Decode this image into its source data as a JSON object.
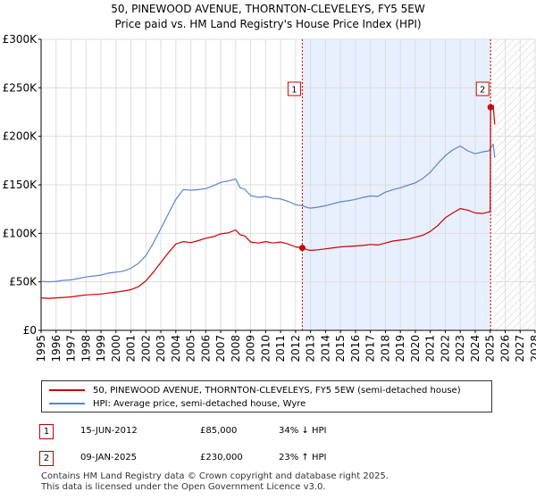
{
  "title_line1": "50, PINEWOOD AVENUE, THORNTON-CLEVELEYS, FY5 5EW",
  "title_line2": "Price paid vs. HM Land Registry's House Price Index (HPI)",
  "colors": {
    "property": "#cc0000",
    "hpi": "#5a87c8",
    "shade": "#e8efff",
    "marker": "#cc0000"
  },
  "chart_data": {
    "type": "line",
    "xlim": [
      1995,
      2028
    ],
    "ylim": [
      0,
      300000
    ],
    "y_ticks": [
      0,
      50000,
      100000,
      150000,
      200000,
      250000,
      300000
    ],
    "y_tick_labels": [
      "£0",
      "£50K",
      "£100K",
      "£150K",
      "£200K",
      "£250K",
      "£300K"
    ],
    "x_ticks": [
      1995,
      1996,
      1997,
      1998,
      1999,
      2000,
      2001,
      2002,
      2003,
      2004,
      2005,
      2006,
      2007,
      2008,
      2009,
      2010,
      2011,
      2012,
      2013,
      2014,
      2015,
      2016,
      2017,
      2018,
      2019,
      2020,
      2021,
      2022,
      2023,
      2024,
      2025,
      2026,
      2027,
      2028
    ],
    "shaded_period": [
      2012.45,
      2025.03
    ],
    "hatched_future_from": 2025.3,
    "series": [
      {
        "name": "50, PINEWOOD AVENUE, THORNTON-CLEVELEYS, FY5 5EW (semi-detached house)",
        "color": "#cc0000",
        "x": [
          1995.0,
          1995.5,
          1996,
          1996.5,
          1997,
          1997.5,
          1998,
          1998.5,
          1999,
          1999.5,
          2000,
          2000.5,
          2001,
          2001.5,
          2002,
          2002.5,
          2003,
          2003.5,
          2004,
          2004.5,
          2005,
          2005.5,
          2006,
          2006.5,
          2007,
          2007.5,
          2008,
          2008.3,
          2008.6,
          2009,
          2009.5,
          2010,
          2010.5,
          2011,
          2011.5,
          2012,
          2012.45,
          2012.8,
          2013,
          2013.5,
          2014,
          2014.5,
          2015,
          2015.5,
          2016,
          2016.5,
          2017,
          2017.5,
          2018,
          2018.5,
          2019,
          2019.5,
          2020,
          2020.5,
          2021,
          2021.5,
          2022,
          2022.5,
          2023,
          2023.5,
          2024,
          2024.5,
          2024.9,
          2025.0,
          2025.03,
          2025.2,
          2025.3
        ],
        "y": [
          33500,
          33000,
          33500,
          34000,
          34500,
          35500,
          36500,
          37000,
          37500,
          38500,
          39500,
          40500,
          42000,
          45000,
          51000,
          60000,
          70000,
          80000,
          89000,
          91500,
          90500,
          92500,
          95000,
          96500,
          99500,
          100500,
          103500,
          98500,
          97500,
          91000,
          90000,
          91500,
          90000,
          91000,
          89000,
          86000,
          85000,
          83000,
          82500,
          83000,
          84000,
          85000,
          86000,
          86500,
          87000,
          87500,
          88500,
          88000,
          90000,
          92000,
          93000,
          94000,
          96000,
          98000,
          102000,
          108000,
          116000,
          121000,
          125500,
          124000,
          121000,
          120500,
          122000,
          122000,
          230000,
          232000,
          212000
        ]
      },
      {
        "name": "HPI: Average price, semi-detached house, Wyre",
        "color": "#5a87c8",
        "x": [
          1995.0,
          1995.5,
          1996,
          1996.5,
          1997,
          1997.5,
          1998,
          1998.5,
          1999,
          1999.5,
          2000,
          2000.5,
          2001,
          2001.5,
          2002,
          2002.5,
          2003,
          2003.5,
          2004,
          2004.5,
          2005,
          2005.5,
          2006,
          2006.5,
          2007,
          2007.5,
          2008,
          2008.3,
          2008.6,
          2009,
          2009.5,
          2010,
          2010.5,
          2011,
          2011.5,
          2012,
          2012.45,
          2012.8,
          2013,
          2013.5,
          2014,
          2014.5,
          2015,
          2015.5,
          2016,
          2016.5,
          2017,
          2017.5,
          2018,
          2018.5,
          2019,
          2019.5,
          2020,
          2020.5,
          2021,
          2021.5,
          2022,
          2022.5,
          2023,
          2023.5,
          2024,
          2024.5,
          2024.9,
          2025.03,
          2025.2,
          2025.3
        ],
        "y": [
          50500,
          50000,
          50500,
          51500,
          52000,
          53500,
          55000,
          56000,
          57000,
          59000,
          60000,
          61000,
          64000,
          69000,
          77000,
          90000,
          105000,
          120000,
          135000,
          145000,
          144500,
          145000,
          146000,
          149000,
          152500,
          154000,
          156000,
          147000,
          145500,
          139000,
          137000,
          138000,
          136000,
          135500,
          133000,
          129500,
          128500,
          126500,
          126000,
          127000,
          128500,
          130500,
          132500,
          133500,
          135000,
          137000,
          138500,
          138000,
          142500,
          145000,
          147000,
          149500,
          152000,
          156500,
          163000,
          172000,
          180000,
          186000,
          190000,
          185000,
          182000,
          184000,
          185000,
          188000,
          192000,
          178000
        ]
      }
    ],
    "markers": [
      {
        "label": "1",
        "x": 2012.45,
        "y": 85000
      },
      {
        "label": "2",
        "x": 2025.03,
        "y": 230000
      }
    ]
  },
  "legend": {
    "property": "50, PINEWOOD AVENUE, THORNTON-CLEVELEYS, FY5 5EW (semi-detached house)",
    "hpi": "HPI: Average price, semi-detached house, Wyre"
  },
  "transactions": [
    {
      "num": "1",
      "date": "15-JUN-2012",
      "price": "£85,000",
      "hpi": "34% ↓ HPI"
    },
    {
      "num": "2",
      "date": "09-JAN-2025",
      "price": "£230,000",
      "hpi": "23% ↑ HPI"
    }
  ],
  "footer_line1": "Contains HM Land Registry data © Crown copyright and database right 2025.",
  "footer_line2": "This data is licensed under the Open Government Licence v3.0."
}
